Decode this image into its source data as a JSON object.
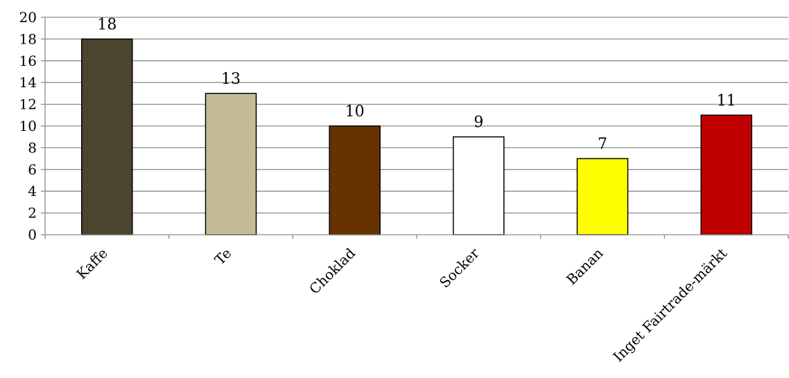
{
  "chart_data": {
    "type": "bar",
    "categories": [
      "Kaffe",
      "Te",
      "Choklad",
      "Socker",
      "Banan",
      "Inget Fairtrade-märkt"
    ],
    "values": [
      18,
      13,
      10,
      9,
      7,
      11
    ],
    "colors": [
      "#4b4530",
      "#c4bc97",
      "#663300",
      "#ffffff",
      "#ffff00",
      "#c00000"
    ],
    "ylim": [
      0,
      20
    ],
    "yticks": [
      0,
      2,
      4,
      6,
      8,
      10,
      12,
      14,
      16,
      18,
      20
    ],
    "grid": true,
    "data_labels": true,
    "legend": "none"
  }
}
